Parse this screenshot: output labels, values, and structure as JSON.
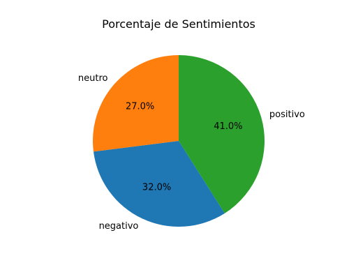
{
  "chart_data": {
    "type": "pie",
    "title": "Porcentaje de Sentimientos",
    "slices": [
      {
        "label": "positivo",
        "value": 41.0,
        "pct_label": "41.0%",
        "color": "#2ca02c"
      },
      {
        "label": "negativo",
        "value": 32.0,
        "pct_label": "32.0%",
        "color": "#1f77b4"
      },
      {
        "label": "neutro",
        "value": 27.0,
        "pct_label": "27.0%",
        "color": "#ff7f0e"
      }
    ],
    "start_angle_deg": 90,
    "direction": "clockwise",
    "legend": "none"
  }
}
